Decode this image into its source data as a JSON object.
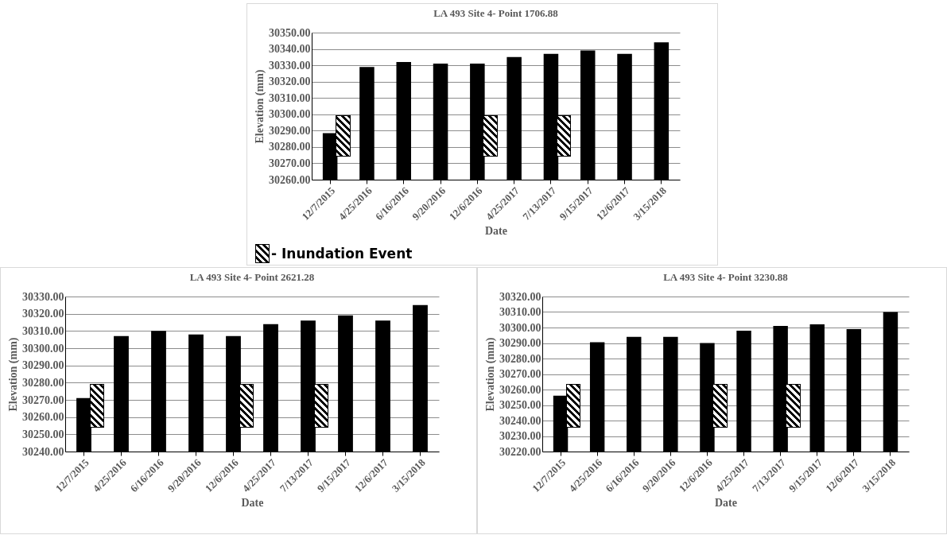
{
  "chart_data": [
    {
      "type": "bar",
      "title": "LA 493 Site 4- Point 1706.88",
      "xlabel": "Date",
      "ylabel": "Elevation (mm)",
      "categories": [
        "12/7/2015",
        "4/25/2016",
        "6/16/2016",
        "9/20/2016",
        "12/6/2016",
        "4/25/2017",
        "7/13/2017",
        "9/15/2017",
        "12/6/2017",
        "3/15/2018"
      ],
      "color": "#000000",
      "values": [
        30288.5,
        30329,
        30332,
        30331,
        30331,
        30335,
        30337,
        30339,
        30337,
        30344
      ],
      "ylim": [
        30260,
        30350
      ],
      "yticks": [
        {
          "value": 30260,
          "label": "30260.00"
        },
        {
          "value": 30270,
          "label": "30270.00"
        },
        {
          "value": 30280,
          "label": "30280.00"
        },
        {
          "value": 30290,
          "label": "30290.00"
        },
        {
          "value": 30300,
          "label": "30300.00"
        },
        {
          "value": 30310,
          "label": "30310.00"
        },
        {
          "value": 30320,
          "label": "30320.00"
        },
        {
          "value": 30330,
          "label": "30330.00"
        },
        {
          "value": 30340,
          "label": "30340.00"
        },
        {
          "value": 30350,
          "label": "30350.00"
        }
      ],
      "grid": "y",
      "annotations": [
        "- Inundation Event"
      ]
    },
    {
      "type": "bar",
      "title": "LA 493 Site 4- Point 2621.28",
      "xlabel": "Date",
      "ylabel": "Elevation (mm)",
      "categories": [
        "12/7/2015",
        "4/25/2016",
        "6/16/2016",
        "9/20/2016",
        "12/6/2016",
        "4/25/2017",
        "7/13/2017",
        "9/15/2017",
        "12/6/2017",
        "3/15/2018"
      ],
      "color": "#000000",
      "values": [
        30271,
        30307,
        30310,
        30308,
        30307,
        30314,
        30316,
        30319,
        30316,
        30325
      ],
      "ylim": [
        30240,
        30330
      ],
      "yticks": [
        {
          "value": 30240,
          "label": "30240.00"
        },
        {
          "value": 30250,
          "label": "30250.00"
        },
        {
          "value": 30260,
          "label": "30260.00"
        },
        {
          "value": 30270,
          "label": "30270.00"
        },
        {
          "value": 30280,
          "label": "30280.00"
        },
        {
          "value": 30290,
          "label": "30290.00"
        },
        {
          "value": 30300,
          "label": "30300.00"
        },
        {
          "value": 30310,
          "label": "30310.00"
        },
        {
          "value": 30320,
          "label": "30320.00"
        },
        {
          "value": 30330,
          "label": "30330.00"
        }
      ],
      "grid": "y"
    },
    {
      "type": "bar",
      "title": "LA 493 Site 4- Point 3230.88",
      "xlabel": "Date",
      "ylabel": "Elevation (mm)",
      "categories": [
        "12/7/2015",
        "4/25/2016",
        "6/16/2016",
        "9/20/2016",
        "12/6/2016",
        "4/25/2017",
        "7/13/2017",
        "9/15/2017",
        "12/6/2017",
        "3/15/2018"
      ],
      "color": "#000000",
      "values": [
        30256,
        30290.5,
        30294,
        30294,
        30290,
        30298,
        30301,
        30302,
        30299,
        30310
      ],
      "ylim": [
        30220,
        30320
      ],
      "yticks": [
        {
          "value": 30220,
          "label": "30220.00"
        },
        {
          "value": 30230,
          "label": "30230.00"
        },
        {
          "value": 30240,
          "label": "30240.00"
        },
        {
          "value": 30250,
          "label": "30250.00"
        },
        {
          "value": 30260,
          "label": "30260.00"
        },
        {
          "value": 30270,
          "label": "30270.00"
        },
        {
          "value": 30280,
          "label": "30280.00"
        },
        {
          "value": 30290,
          "label": "30290.00"
        },
        {
          "value": 30300,
          "label": "30300.00"
        },
        {
          "value": 30310,
          "label": "30310.00"
        },
        {
          "value": 30320,
          "label": "30320.00"
        }
      ],
      "grid": "y"
    }
  ]
}
